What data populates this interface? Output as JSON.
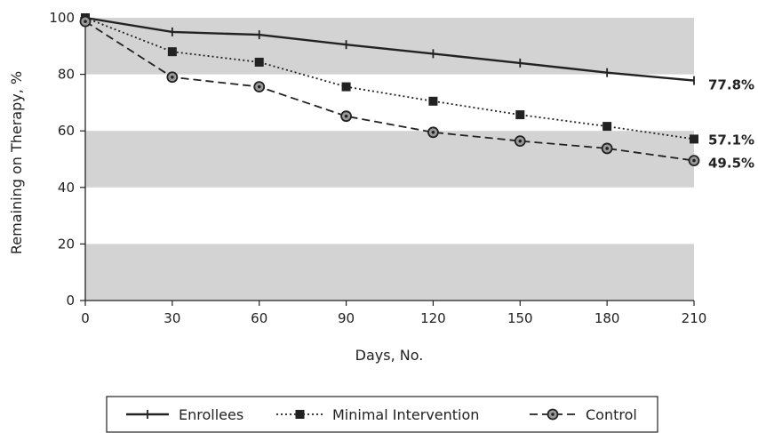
{
  "chart_data": {
    "type": "line",
    "x": [
      0,
      30,
      60,
      90,
      120,
      150,
      180,
      210
    ],
    "xlabel": "Days, No.",
    "ylabel": "Remaining on Therapy, %",
    "xlim": [
      0,
      210
    ],
    "ylim": [
      0,
      100
    ],
    "xticks": [
      "0",
      "30",
      "60",
      "90",
      "120",
      "150",
      "180",
      "210"
    ],
    "yticks": [
      "0",
      "20",
      "40",
      "60",
      "80",
      "100"
    ],
    "grid": "alternating gray horizontal bands",
    "legend_position": "bottom",
    "series": [
      {
        "name": "Enrollees",
        "values": [
          100,
          95,
          94,
          90.5,
          87.3,
          84,
          80.6,
          77.8
        ],
        "line_style": "solid",
        "marker": "tick",
        "color": "#222222",
        "end_label": "77.8%"
      },
      {
        "name": "Minimal Intervention",
        "values": [
          100,
          88,
          84.3,
          75.6,
          70.5,
          65.7,
          61.6,
          57.1
        ],
        "line_style": "dotted",
        "marker": "square",
        "color": "#222222",
        "end_label": "57.1%"
      },
      {
        "name": "Control",
        "values": [
          98.7,
          79,
          75.6,
          65.2,
          59.5,
          56.4,
          53.8,
          49.5
        ],
        "line_style": "dashed",
        "marker": "circle",
        "color": "#222222",
        "end_label": "49.5%"
      }
    ]
  }
}
